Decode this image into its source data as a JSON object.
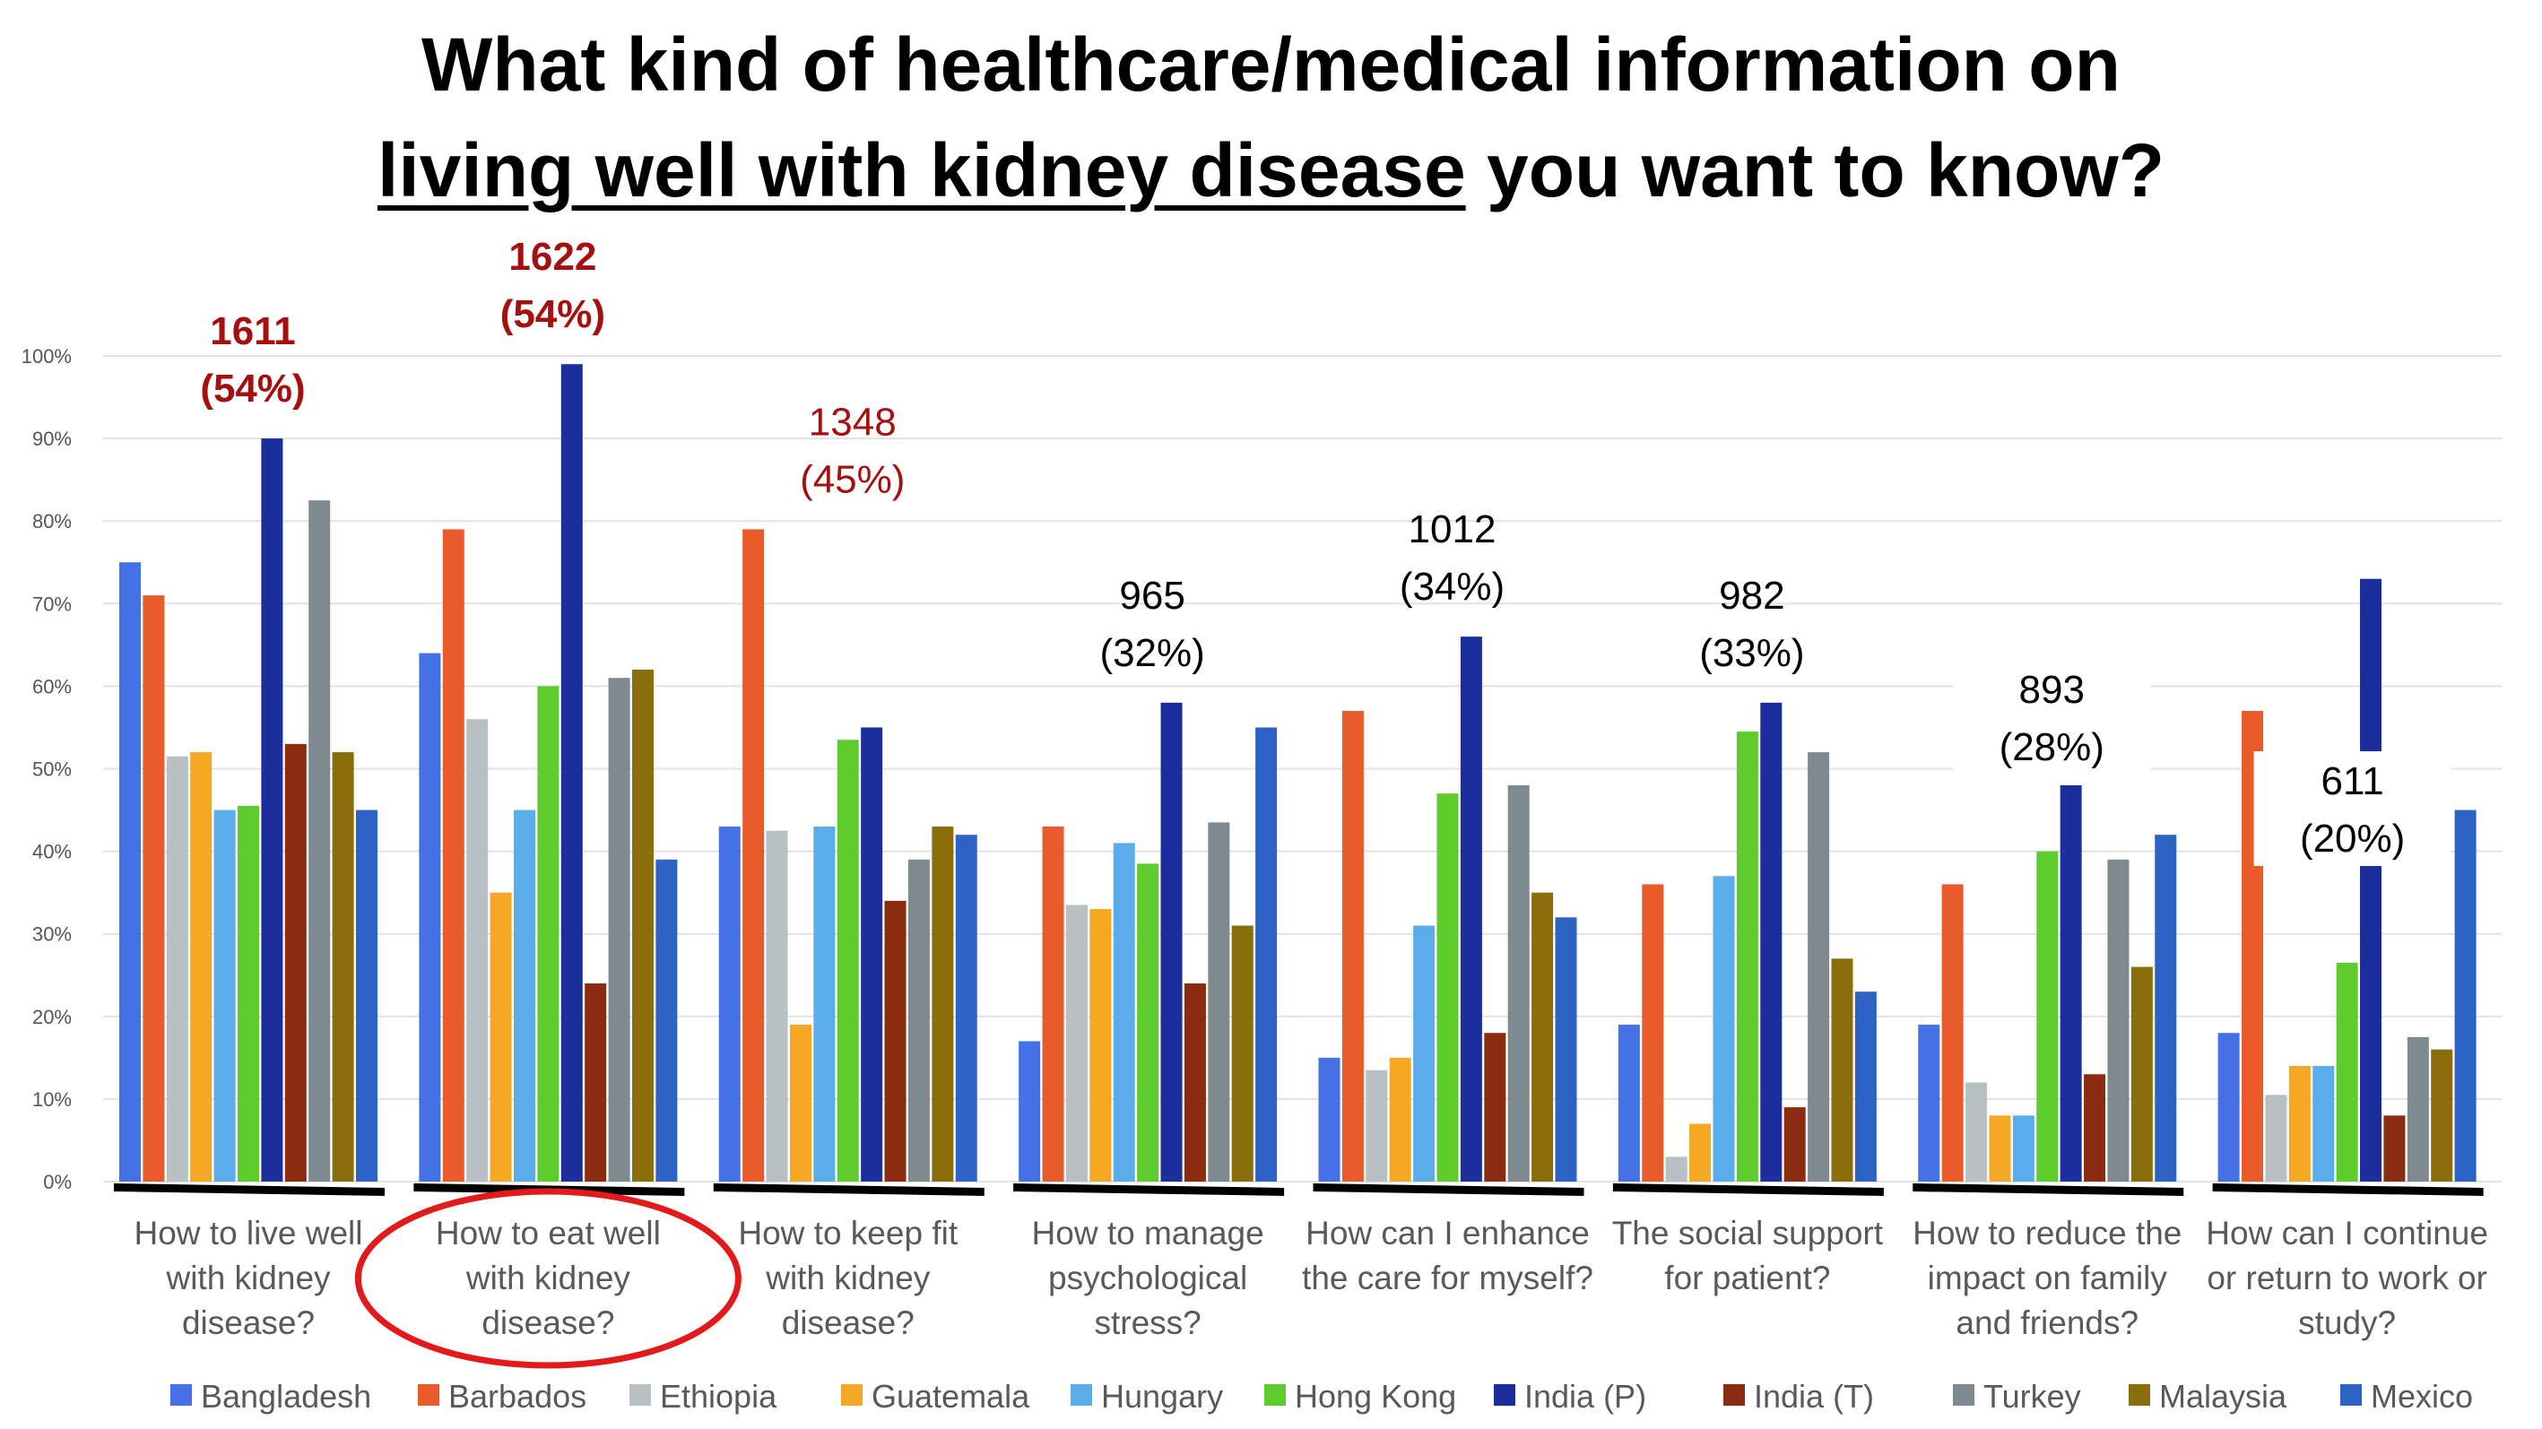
{
  "title": {
    "line1": "What kind of healthcare/medical information on",
    "line2_underlined": "living well with kidney disease",
    "line2_rest": " you want to know?"
  },
  "chart_data": {
    "type": "bar",
    "ylim": [
      0,
      100
    ],
    "y_ticks": [
      "0%",
      "10%",
      "20%",
      "30%",
      "40%",
      "50%",
      "60%",
      "70%",
      "80%",
      "90%",
      "100%"
    ],
    "grid": true,
    "legend_position": "bottom",
    "categories": [
      [
        "How to live well",
        "with kidney",
        "disease?"
      ],
      [
        "How to eat well",
        "with kidney",
        "disease?"
      ],
      [
        "How to keep fit",
        "with kidney",
        "disease?"
      ],
      [
        "How to manage",
        "psychological",
        "stress?"
      ],
      [
        "How can I enhance",
        "the care for myself?"
      ],
      [
        "The social support",
        "for patient?"
      ],
      [
        "How to reduce the",
        "impact on family",
        "and friends?"
      ],
      [
        "How can I continue",
        "or return to work or",
        "study?"
      ]
    ],
    "totals": [
      {
        "count": "1611",
        "pct": "(54%)",
        "color": "#a50f0f",
        "bold": true
      },
      {
        "count": "1622",
        "pct": "(54%)",
        "color": "#a50f0f",
        "bold": true
      },
      {
        "count": "1348",
        "pct": "(45%)",
        "color": "#a50f0f",
        "bold": false
      },
      {
        "count": "965",
        "pct": "(32%)",
        "color": "#000000",
        "bold": false
      },
      {
        "count": "1012",
        "pct": "(34%)",
        "color": "#000000",
        "bold": false
      },
      {
        "count": "982",
        "pct": "(33%)",
        "color": "#000000",
        "bold": false
      },
      {
        "count": "893",
        "pct": "(28%)",
        "color": "#000000",
        "bold": false
      },
      {
        "count": "611",
        "pct": "(20%)",
        "color": "#000000",
        "bold": false
      }
    ],
    "highlighted_category": 1,
    "highlight_color": "#e31a1c",
    "series": [
      {
        "name": "Bangladesh",
        "color": "#4472e6",
        "values": [
          75,
          64,
          43,
          17,
          15,
          19,
          19,
          18
        ]
      },
      {
        "name": "Barbados",
        "color": "#ea5b2b",
        "values": [
          71,
          79,
          79,
          43,
          57,
          36,
          36,
          57
        ]
      },
      {
        "name": "Ethiopia",
        "color": "#b9c0c4",
        "values": [
          51.5,
          56,
          42.5,
          33.5,
          13.5,
          3,
          12,
          10.5
        ]
      },
      {
        "name": "Guatemala",
        "color": "#f5a823",
        "values": [
          52,
          35,
          19,
          33,
          15,
          7,
          8,
          14
        ]
      },
      {
        "name": "Hungary",
        "color": "#5bacea",
        "values": [
          45,
          45,
          43,
          41,
          31,
          37,
          8,
          14
        ]
      },
      {
        "name": "Hong Kong",
        "color": "#5fcc2e",
        "values": [
          45.5,
          60,
          53.5,
          38.5,
          47,
          54.5,
          40,
          26.5
        ]
      },
      {
        "name": "India (P)",
        "color": "#1c2e9c",
        "values": [
          90,
          99,
          55,
          58,
          66,
          58,
          48,
          73
        ]
      },
      {
        "name": "India (T)",
        "color": "#8b2c10",
        "values": [
          53,
          24,
          34,
          24,
          18,
          9,
          13,
          8
        ]
      },
      {
        "name": "Turkey",
        "color": "#7f8a90",
        "values": [
          82.5,
          61,
          39,
          43.5,
          48,
          52,
          39,
          17.5
        ]
      },
      {
        "name": "Malaysia",
        "color": "#8a6e0b",
        "values": [
          52,
          62,
          43,
          31,
          35,
          27,
          26,
          16
        ]
      },
      {
        "name": "Mexico",
        "color": "#2d63c5",
        "values": [
          45,
          39,
          42,
          55,
          32,
          23,
          42,
          45
        ]
      }
    ]
  }
}
